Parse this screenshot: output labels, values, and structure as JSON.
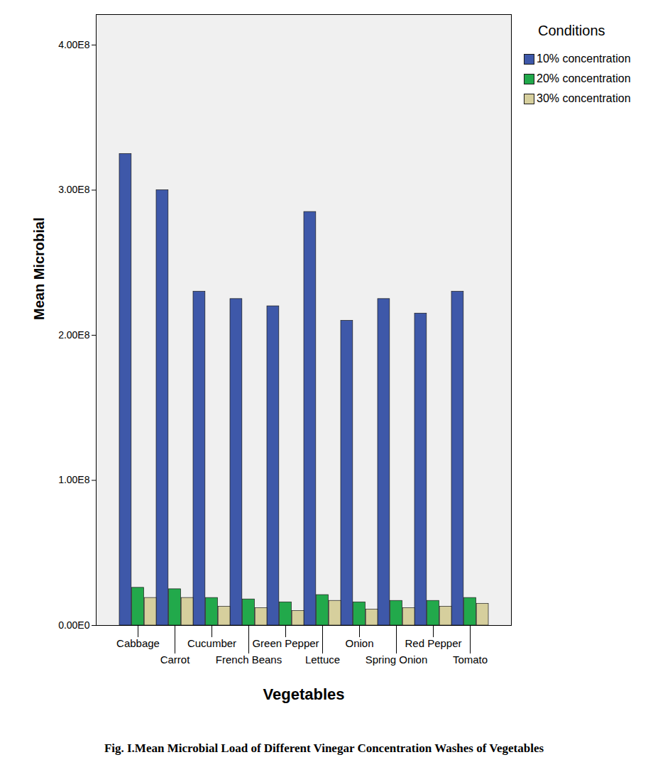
{
  "chart_data": {
    "type": "bar",
    "title": "Fig. I.Mean Microbial Load of Different Vinegar Concentration Washes of Vegetables",
    "x_label": "Vegetables",
    "y_label": "Mean Microbial",
    "legend_title": "Conditions",
    "legend": "right",
    "grid": false,
    "categories": [
      "Cabbage",
      "Carrot",
      "Cucumber",
      "French Beans",
      "Green Pepper",
      "Lettuce",
      "Onion",
      "Spring Onion",
      "Red Pepper",
      "Tomato"
    ],
    "series": [
      {
        "name": "10% concentration",
        "color": "#3e58a9",
        "values": [
          325000000,
          300000000,
          230000000,
          225000000,
          220000000,
          285000000,
          210000000,
          225000000,
          215000000,
          230000000
        ]
      },
      {
        "name": "20% concentration",
        "color": "#22a94b",
        "values": [
          26000000,
          25000000,
          19000000,
          18000000,
          16000000,
          21000000,
          16000000,
          17000000,
          17000000,
          19000000
        ]
      },
      {
        "name": "30% concentration",
        "color": "#d6cf9d",
        "values": [
          19000000,
          19000000,
          13000000,
          12000000,
          10000000,
          17000000,
          11000000,
          12000000,
          13000000,
          15000000
        ]
      }
    ],
    "ylim": [
      0,
      421000000
    ],
    "yticks": [
      {
        "value": 0,
        "label": "0.00E0"
      },
      {
        "value": 100000000,
        "label": "1.00E8"
      },
      {
        "value": 200000000,
        "label": "2.00E8"
      },
      {
        "value": 300000000,
        "label": "3.00E8"
      },
      {
        "value": 400000000,
        "label": "4.00E8"
      }
    ]
  }
}
